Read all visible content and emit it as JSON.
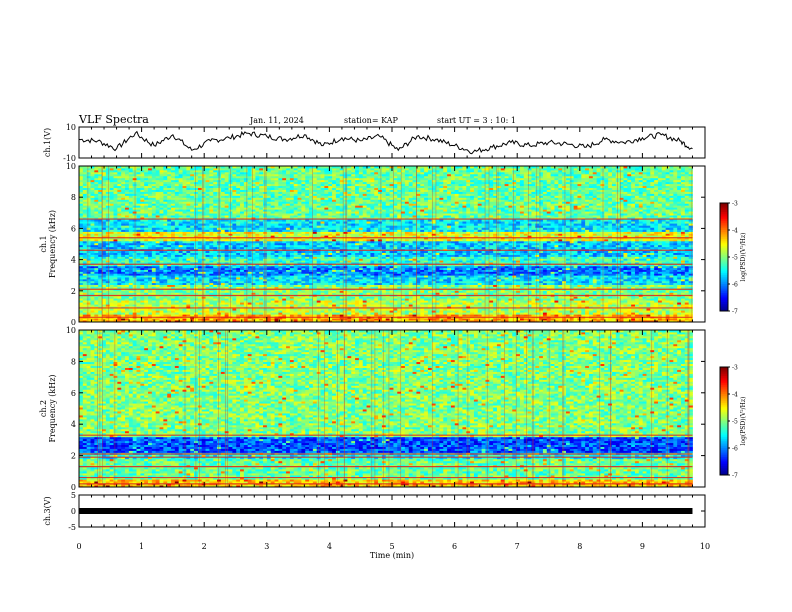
{
  "header": {
    "title": "VLF Spectra",
    "date": "Jan. 11, 2024",
    "station": "station= KAP",
    "start": "start UT = 3 : 10: 1"
  },
  "chart_data": [
    {
      "type": "line",
      "ylabel": "ch.1(V)",
      "ylim": [
        -10,
        10
      ],
      "yticks": [
        10,
        -10
      ],
      "x": [
        0.0,
        0.3,
        0.6,
        0.9,
        1.2,
        1.5,
        1.8,
        2.1,
        2.4,
        2.7,
        3.0,
        3.3,
        3.6,
        3.9,
        4.2,
        4.5,
        4.8,
        5.1,
        5.4,
        5.7,
        6.0,
        6.3,
        6.6,
        6.9,
        7.2,
        7.5,
        7.8,
        8.1,
        8.4,
        8.7,
        9.0,
        9.3,
        9.6,
        9.8
      ],
      "y": [
        2,
        1,
        -4,
        6,
        -2,
        5,
        -5,
        1,
        3,
        6,
        4,
        2,
        5,
        -2,
        3,
        1,
        4,
        -5,
        4,
        2,
        -2,
        -6,
        -3,
        0,
        -2,
        0,
        -1,
        -3,
        2,
        0,
        3,
        5,
        1,
        -4
      ],
      "series": [
        {
          "values": [
            2,
            1,
            -4,
            6,
            -2,
            5,
            -5,
            1,
            3,
            6,
            4,
            2,
            5,
            -2,
            3,
            1,
            4,
            -5,
            4,
            2,
            -2,
            -6,
            -3,
            0,
            -2,
            0,
            -1,
            -3,
            2,
            0,
            3,
            5,
            1,
            -4
          ]
        }
      ]
    },
    {
      "type": "heatmap",
      "ylabel": "ch.1\nFrequency (kHz)",
      "ylim": [
        0,
        10
      ],
      "yticks": [
        0,
        2,
        4,
        6,
        8,
        10
      ],
      "colorbar": {
        "label": "log(PSD)(V²/Hz)",
        "range": [
          -7,
          -3
        ],
        "ticks": [
          -3,
          -4,
          -5,
          -6,
          -7
        ]
      },
      "bands": [
        {
          "from": 0.0,
          "to": 0.5,
          "level": -4.2
        },
        {
          "from": 0.5,
          "to": 1.4,
          "level": -4.8
        },
        {
          "from": 1.4,
          "to": 2.4,
          "level": -5.0
        },
        {
          "from": 2.4,
          "to": 3.0,
          "level": -5.6
        },
        {
          "from": 3.0,
          "to": 3.6,
          "level": -6.0
        },
        {
          "from": 3.6,
          "to": 4.2,
          "level": -5.3
        },
        {
          "from": 4.2,
          "to": 5.2,
          "level": -5.7
        },
        {
          "from": 5.2,
          "to": 5.8,
          "level": -4.6
        },
        {
          "from": 5.8,
          "to": 6.6,
          "level": -5.6
        },
        {
          "from": 6.6,
          "to": 10.0,
          "level": -5.1
        }
      ],
      "lines": [
        0.3,
        0.9,
        1.7,
        2.1,
        3.7,
        4.6,
        5.4,
        6.6
      ]
    },
    {
      "type": "heatmap",
      "ylabel": "ch.2\nFrequency (kHz)",
      "ylim": [
        0,
        10
      ],
      "yticks": [
        0,
        2,
        4,
        6,
        8,
        10
      ],
      "colorbar": {
        "label": "log(PSD)(V²/Hz)",
        "range": [
          -7,
          -3
        ],
        "ticks": [
          -3,
          -4,
          -5,
          -6,
          -7
        ]
      },
      "bands": [
        {
          "from": 0.0,
          "to": 0.5,
          "level": -4.3
        },
        {
          "from": 0.5,
          "to": 1.8,
          "level": -5.1
        },
        {
          "from": 1.8,
          "to": 2.2,
          "level": -5.5
        },
        {
          "from": 2.2,
          "to": 3.2,
          "level": -6.2
        },
        {
          "from": 3.2,
          "to": 10.0,
          "level": -5.0
        }
      ],
      "lines": [
        0.2,
        0.6,
        1.3,
        1.9,
        2.1,
        3.3
      ]
    },
    {
      "type": "line",
      "ylabel": "ch.3(V)",
      "xlabel": "Time (min)",
      "ylim": [
        -5,
        5
      ],
      "yticks": [
        5,
        0,
        -5
      ],
      "xlim": [
        0,
        10
      ],
      "xticks": [
        0,
        1,
        2,
        3,
        4,
        5,
        6,
        7,
        8,
        9,
        10
      ],
      "x": [
        0,
        9.8
      ],
      "y": [
        0,
        0
      ],
      "series": [
        {
          "values": [
            0,
            0
          ]
        }
      ]
    }
  ]
}
